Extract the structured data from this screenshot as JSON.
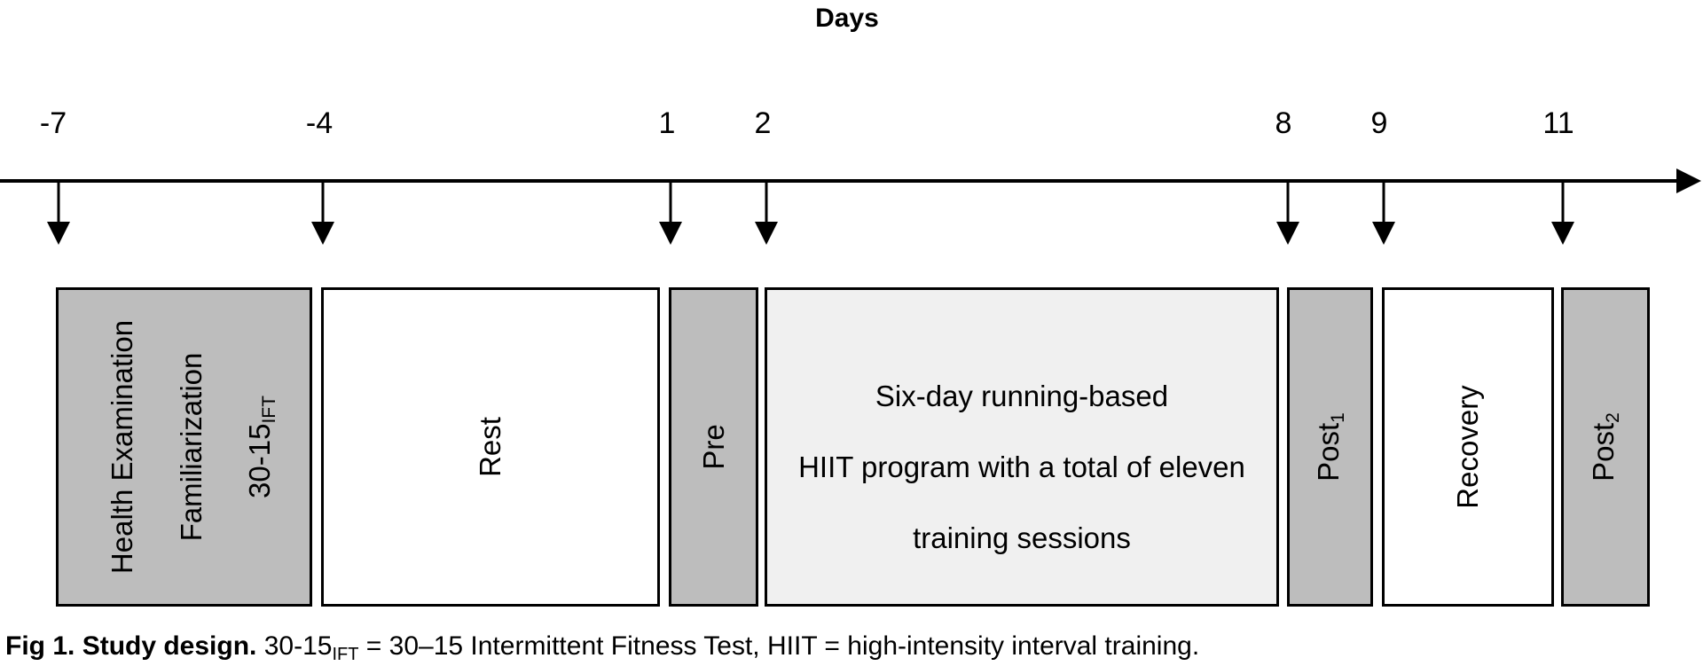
{
  "axis": {
    "title": "Days",
    "ticks": [
      "-7",
      "-4",
      "1",
      "2",
      "8",
      "9",
      "11"
    ]
  },
  "boxes": {
    "screening": {
      "line1": "Health Examination",
      "line2": "Familiarization",
      "line3_main": "30-15",
      "line3_sub": "IFT"
    },
    "rest": {
      "label": "Rest"
    },
    "pre": {
      "label": "Pre"
    },
    "hiit": {
      "line1": "Six-day running-based",
      "line2": "HIIT program with a total of eleven",
      "line3": "training sessions"
    },
    "post1": {
      "main": "Post",
      "sub": "1"
    },
    "recovery": {
      "label": "Recovery"
    },
    "post2": {
      "main": "Post",
      "sub": "2"
    }
  },
  "caption": {
    "fig": "Fig 1.",
    "title": "Study design.",
    "text1": "30-15",
    "sub": "IFT",
    "text2": "= 30–15 Intermittent Fitness Test, HIIT = high-intensity interval training."
  },
  "colors": {
    "gray_box": "#bdbdbd",
    "light_box": "#f0f0f0",
    "white_box": "#ffffff",
    "line": "#000000"
  }
}
